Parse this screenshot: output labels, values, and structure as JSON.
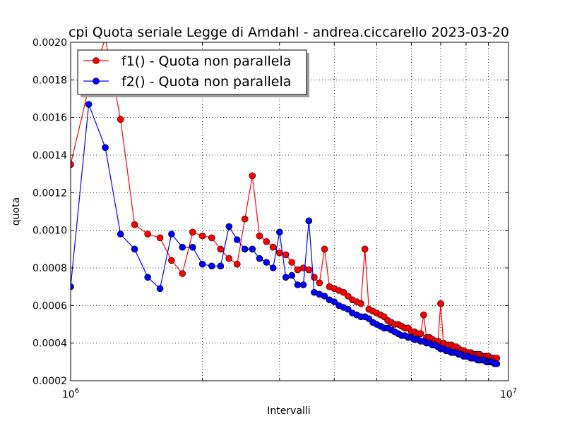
{
  "chart_data": {
    "type": "line",
    "title": "cpi Quota seriale  Legge di Amdahl - andrea.ciccarello 2023-03-20",
    "xlabel": "Intervalli",
    "ylabel": "quota",
    "xscale": "log",
    "xlim": [
      1000000,
      10000000
    ],
    "ylim": [
      0.0002,
      0.002
    ],
    "xtick_labels": [
      {
        "value": 1000000,
        "base": "10",
        "exp": "6"
      },
      {
        "value": 10000000,
        "base": "10",
        "exp": "7"
      }
    ],
    "yticks": [
      0.0002,
      0.0004,
      0.0006,
      0.0008,
      0.001,
      0.0012,
      0.0014,
      0.0016,
      0.0018,
      0.002
    ],
    "ytick_labels": [
      "0.0002",
      "0.0004",
      "0.0006",
      "0.0008",
      "0.0010",
      "0.0012",
      "0.0014",
      "0.0016",
      "0.0018",
      "0.0020"
    ],
    "grid": true,
    "legend_position": "top-left",
    "series": [
      {
        "name": "f1() - Quota non parallela",
        "color": "#ff0000",
        "x": [
          1000000,
          1100000,
          1200000,
          1300000,
          1400000,
          1500000,
          1600000,
          1700000,
          1800000,
          1900000,
          2000000,
          2100000,
          2200000,
          2300000,
          2400000,
          2500000,
          2600000,
          2700000,
          2800000,
          2900000,
          3000000,
          3100000,
          3200000,
          3300000,
          3400000,
          3500000,
          3600000,
          3700000,
          3800000,
          3900000,
          4000000,
          4100000,
          4200000,
          4300000,
          4400000,
          4500000,
          4600000,
          4700000,
          4800000,
          4900000,
          5000000,
          5100000,
          5200000,
          5300000,
          5400000,
          5500000,
          5600000,
          5700000,
          5800000,
          5900000,
          6000000,
          6100000,
          6200000,
          6300000,
          6400000,
          6500000,
          6600000,
          6700000,
          6800000,
          6900000,
          7000000,
          7100000,
          7200000,
          7300000,
          7400000,
          7500000,
          7600000,
          7700000,
          7800000,
          7900000,
          8000000,
          8100000,
          8200000,
          8300000,
          8400000,
          8500000,
          8600000,
          8700000,
          8800000,
          8900000,
          9000000,
          9100000,
          9200000,
          9300000,
          9400000
        ],
        "y": [
          0.00135,
          0.00176,
          0.00202,
          0.00159,
          0.00103,
          0.00098,
          0.00096,
          0.00084,
          0.00077,
          0.00099,
          0.00097,
          0.00096,
          0.0009,
          0.00085,
          0.00082,
          0.00106,
          0.00129,
          0.00097,
          0.00094,
          0.00091,
          0.00088,
          0.00087,
          0.00083,
          0.00079,
          0.0008,
          0.00079,
          0.00075,
          0.00072,
          0.0009,
          0.0007,
          0.00069,
          0.00068,
          0.00067,
          0.00065,
          0.00063,
          0.00062,
          0.00061,
          0.0009,
          0.00058,
          0.00057,
          0.00056,
          0.00055,
          0.00054,
          0.00052,
          0.00051,
          0.0005,
          0.0005,
          0.00049,
          0.00048,
          0.00048,
          0.00046,
          0.00046,
          0.00045,
          0.00045,
          0.00055,
          0.00043,
          0.00043,
          0.00042,
          0.00041,
          0.00041,
          0.00061,
          0.0004,
          0.00039,
          0.00039,
          0.00039,
          0.00038,
          0.00038,
          0.00037,
          0.00036,
          0.00036,
          0.00035,
          0.00035,
          0.00035,
          0.00034,
          0.00034,
          0.00034,
          0.00034,
          0.00033,
          0.00033,
          0.00033,
          0.00033,
          0.00032,
          0.00032,
          0.00032,
          0.00032
        ]
      },
      {
        "name": "f2() - Quota non parallela",
        "color": "#0000ff",
        "x": [
          1000000,
          1100000,
          1200000,
          1300000,
          1400000,
          1500000,
          1600000,
          1700000,
          1800000,
          1900000,
          2000000,
          2100000,
          2200000,
          2300000,
          2400000,
          2500000,
          2600000,
          2700000,
          2800000,
          2900000,
          3000000,
          3100000,
          3200000,
          3300000,
          3400000,
          3500000,
          3600000,
          3700000,
          3800000,
          3900000,
          4000000,
          4100000,
          4200000,
          4300000,
          4400000,
          4500000,
          4600000,
          4700000,
          4800000,
          4900000,
          5000000,
          5100000,
          5200000,
          5300000,
          5400000,
          5500000,
          5600000,
          5700000,
          5800000,
          5900000,
          6000000,
          6100000,
          6200000,
          6300000,
          6400000,
          6500000,
          6600000,
          6700000,
          6800000,
          6900000,
          7000000,
          7100000,
          7200000,
          7300000,
          7400000,
          7500000,
          7600000,
          7700000,
          7800000,
          7900000,
          8000000,
          8100000,
          8200000,
          8300000,
          8400000,
          8500000,
          8600000,
          8700000,
          8800000,
          8900000,
          9000000,
          9100000,
          9200000,
          9300000,
          9400000
        ],
        "y": [
          0.0007,
          0.00167,
          0.00144,
          0.00098,
          0.0009,
          0.00075,
          0.00069,
          0.00098,
          0.00091,
          0.00091,
          0.00082,
          0.00081,
          0.00081,
          0.00102,
          0.00095,
          0.0009,
          0.0009,
          0.00085,
          0.00083,
          0.0008,
          0.00099,
          0.00075,
          0.00076,
          0.00071,
          0.00071,
          0.00105,
          0.00067,
          0.00066,
          0.00065,
          0.00063,
          0.00062,
          0.0006,
          0.00059,
          0.00058,
          0.00056,
          0.00055,
          0.00054,
          0.00054,
          0.00053,
          0.00051,
          0.0005,
          0.00049,
          0.00048,
          0.00048,
          0.00047,
          0.00046,
          0.00045,
          0.00044,
          0.00044,
          0.00043,
          0.00043,
          0.00042,
          0.00042,
          0.00041,
          0.00041,
          0.0004,
          0.0004,
          0.00039,
          0.00039,
          0.00038,
          0.00037,
          0.00037,
          0.00036,
          0.00036,
          0.00035,
          0.00035,
          0.00035,
          0.00034,
          0.00034,
          0.00033,
          0.00033,
          0.00033,
          0.00032,
          0.00032,
          0.00032,
          0.00031,
          0.00031,
          0.00031,
          0.00031,
          0.0003,
          0.0003,
          0.0003,
          0.0003,
          0.00029,
          0.00029
        ]
      }
    ]
  }
}
